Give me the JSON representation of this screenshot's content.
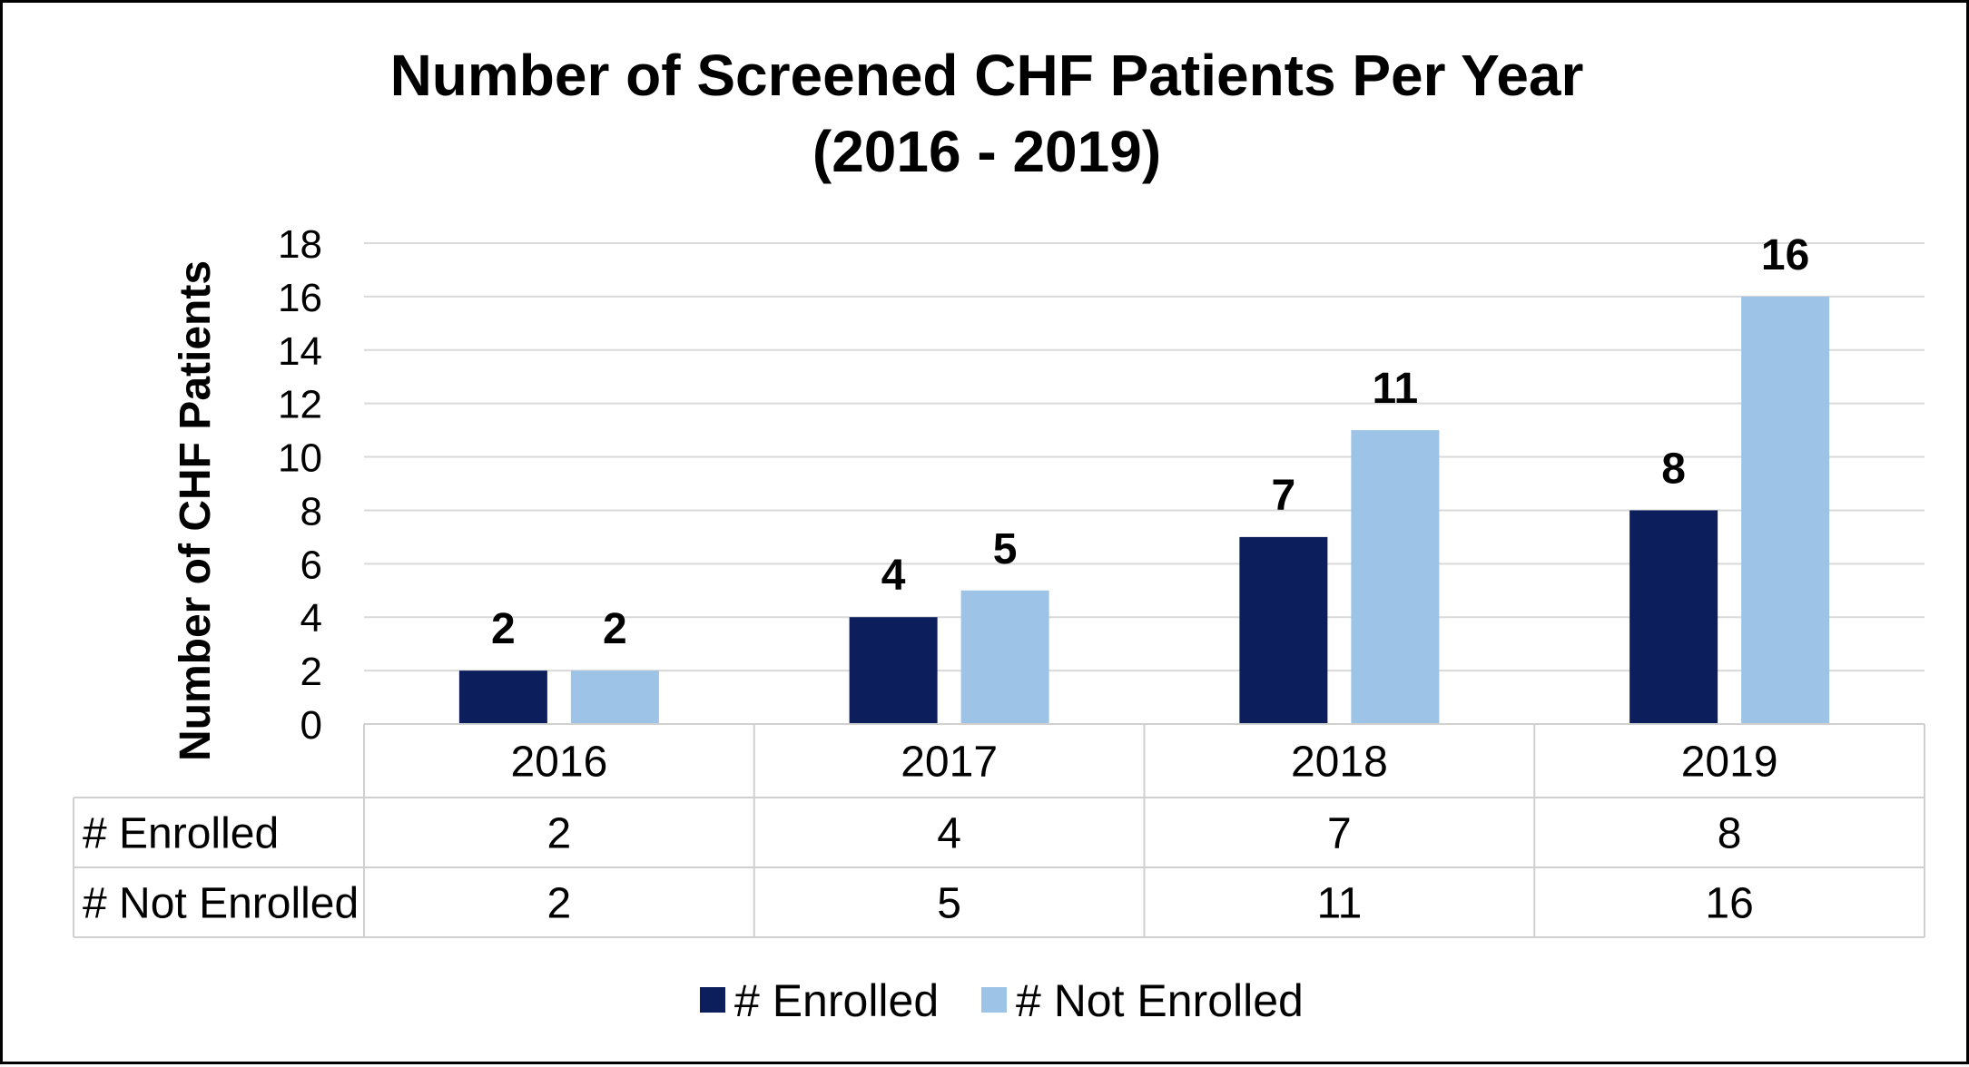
{
  "chart_data": {
    "type": "bar",
    "title_line1": "Number of Screened CHF Patients Per Year",
    "title_line2": "(2016 - 2019)",
    "ylabel": "Number of CHF Patients",
    "xlabel": "",
    "ylim": [
      0,
      18
    ],
    "ytick_step": 2,
    "yticks": [
      "0",
      "2",
      "4",
      "6",
      "8",
      "10",
      "12",
      "14",
      "16",
      "18"
    ],
    "grid": true,
    "legend_position": "bottom",
    "categories": [
      "2016",
      "2017",
      "2018",
      "2019"
    ],
    "series": [
      {
        "name": "# Enrolled",
        "values": [
          2,
          4,
          7,
          8
        ],
        "color": "#0c1f5c"
      },
      {
        "name": "# Not Enrolled",
        "values": [
          2,
          5,
          11,
          16
        ],
        "color": "#9dc3e6"
      }
    ]
  }
}
